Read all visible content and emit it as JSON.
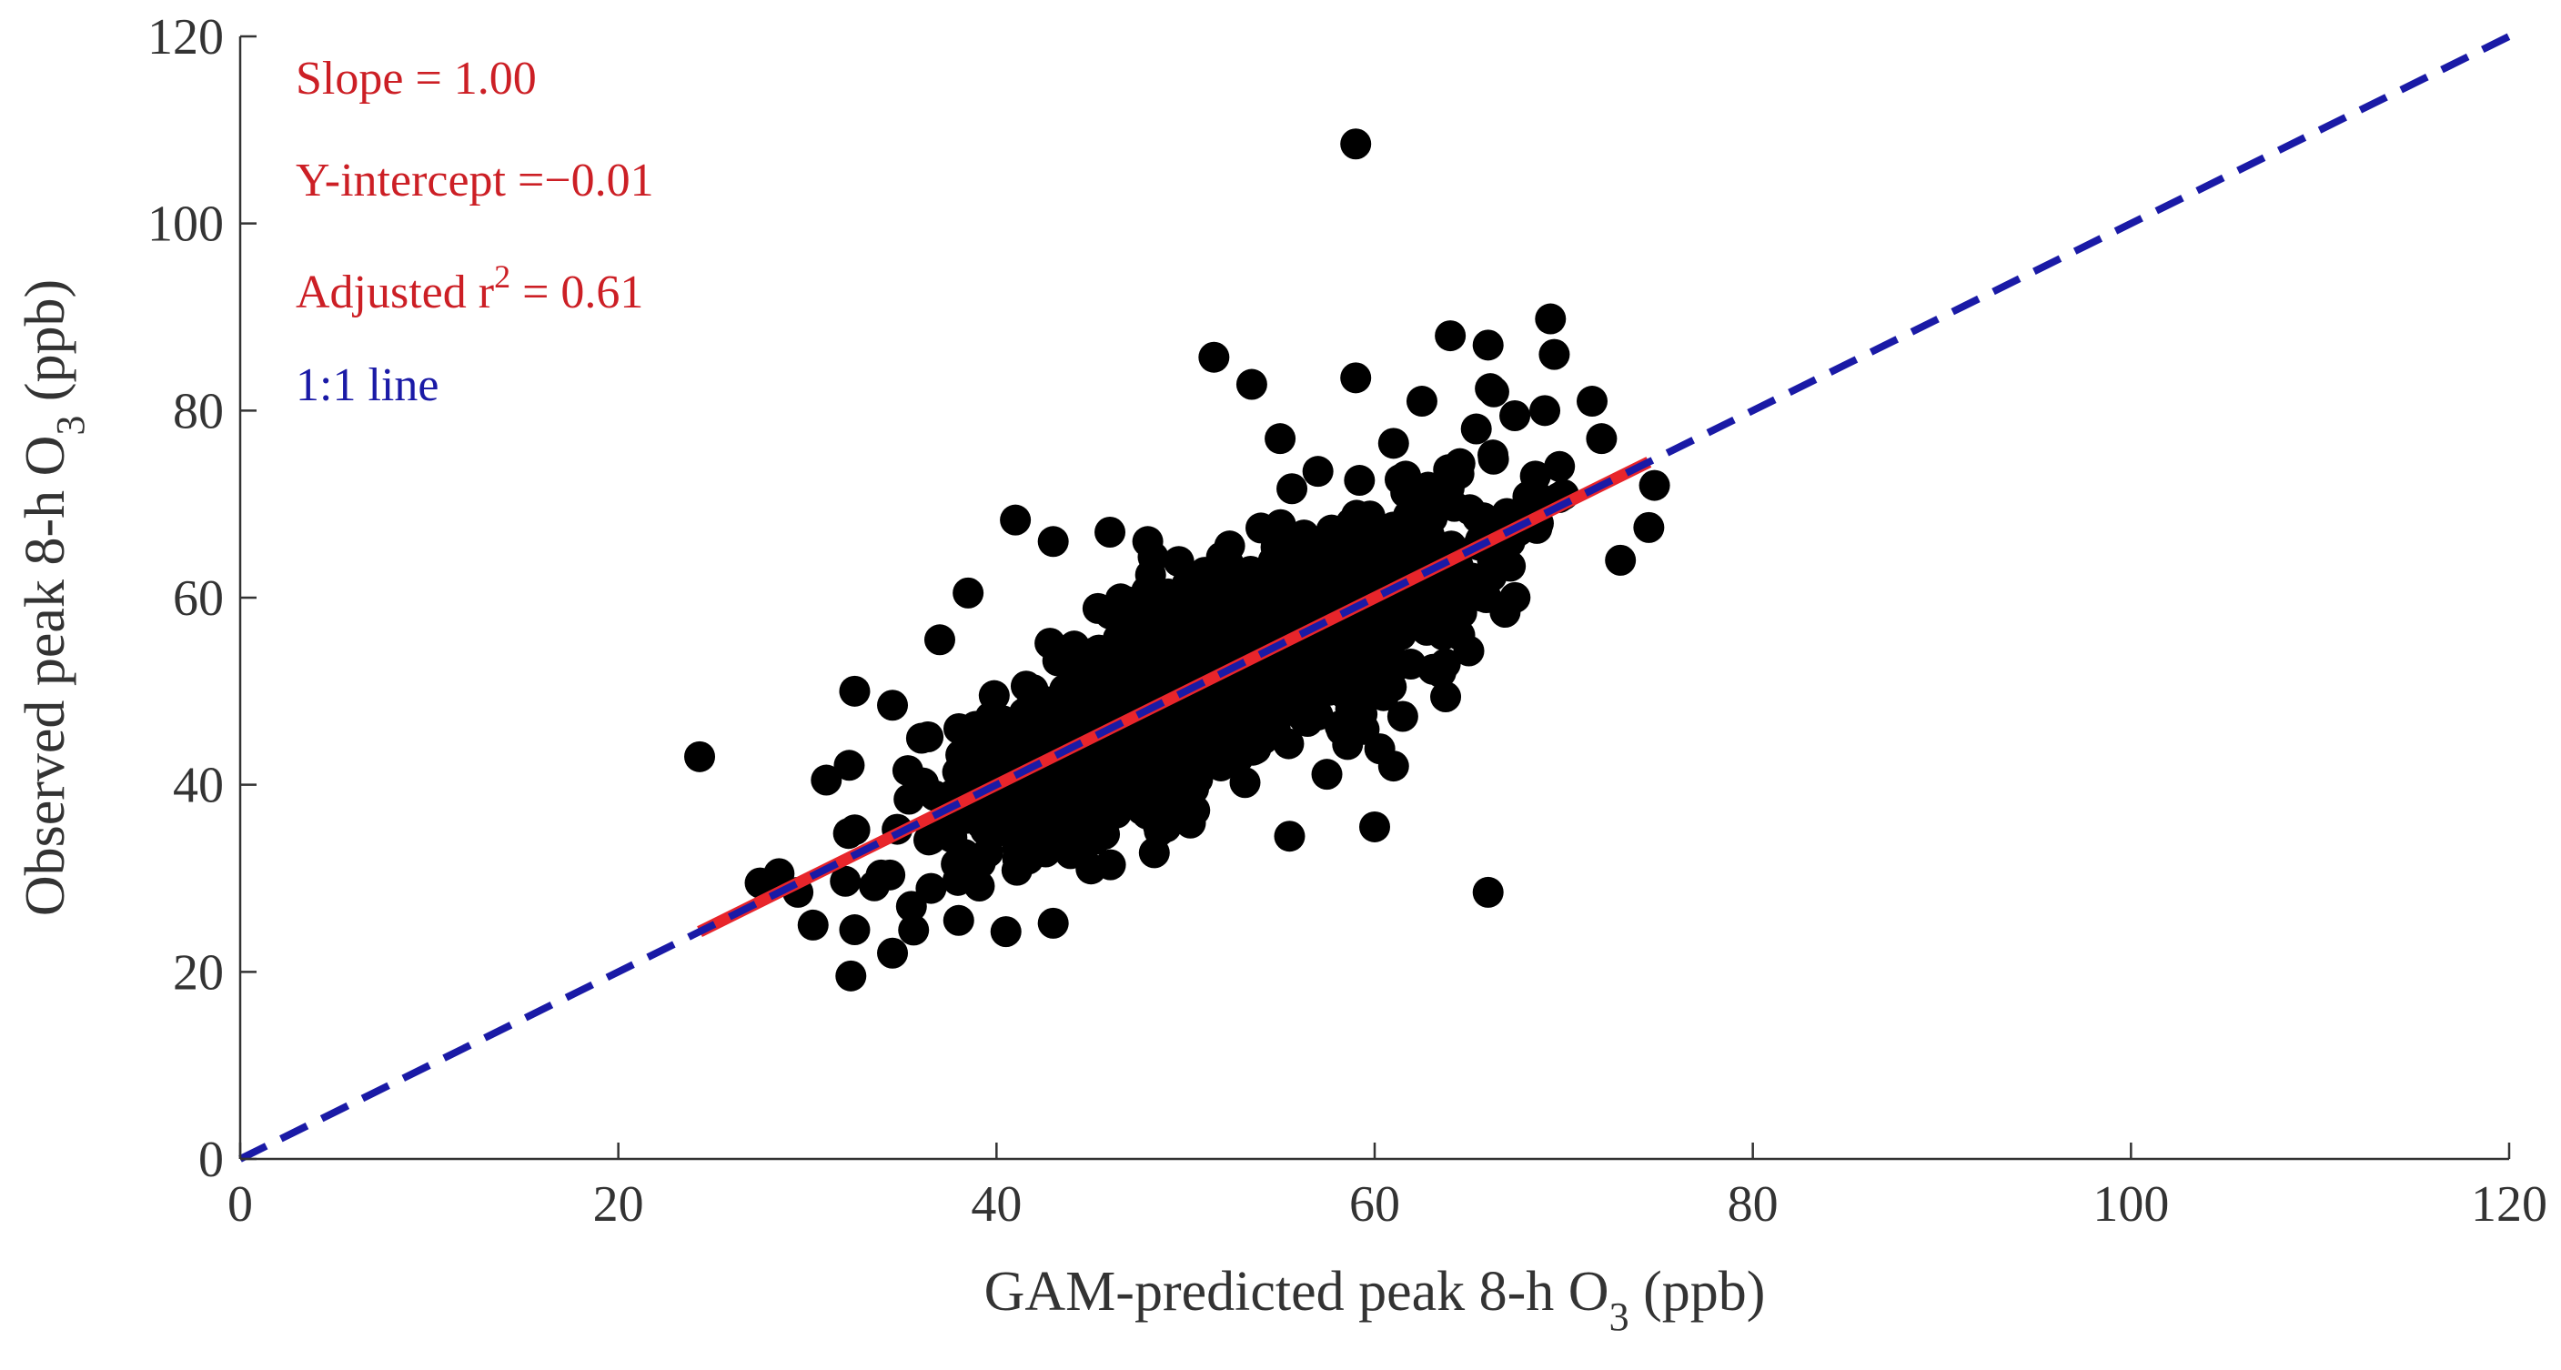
{
  "chart_data": {
    "type": "scatter",
    "xlabel_main": "GAM-predicted peak 8-h O",
    "xlabel_sub": "3",
    "xlabel_unit": " (ppb)",
    "ylabel_main": "Observed peak 8-h O",
    "ylabel_sub": "3",
    "ylabel_unit": " (ppb)",
    "xlim": [
      0,
      120
    ],
    "ylim": [
      0,
      120
    ],
    "x_ticks": [
      0,
      20,
      40,
      60,
      80,
      100,
      120
    ],
    "y_ticks": [
      0,
      20,
      40,
      60,
      80,
      100,
      120
    ],
    "grid": false,
    "annotations": {
      "slope": "Slope = 1.00",
      "intercept": "Y-intercept =−0.01",
      "r2_prefix": "Adjusted r",
      "r2_sup": "2",
      "r2_suffix": " = 0.61",
      "oneone": "1:1 line"
    },
    "colors": {
      "points": "#000000",
      "fit_line": "#e8252b",
      "oneone_line": "#1a1aa6",
      "annotation_red": "#cc1f25",
      "annotation_blue": "#1a1aa6"
    },
    "fit_line": {
      "x": [
        24.3,
        74.5
      ],
      "y": [
        24.3,
        74.5
      ]
    },
    "oneone_line": {
      "x": [
        0,
        120
      ],
      "y": [
        0,
        120
      ]
    },
    "points": {
      "outliers": [
        [
          24.3,
          43.0
        ],
        [
          59.0,
          108.5
        ],
        [
          66.0,
          28.5
        ],
        [
          74.8,
          72.0
        ],
        [
          74.5,
          67.5
        ],
        [
          73.0,
          64.0
        ],
        [
          71.5,
          81.0
        ],
        [
          69.5,
          86.0
        ],
        [
          69.3,
          89.8
        ],
        [
          72.0,
          77.0
        ],
        [
          64.0,
          88.0
        ],
        [
          66.0,
          87.0
        ],
        [
          51.5,
          85.7
        ],
        [
          53.5,
          82.8
        ],
        [
          59.0,
          83.5
        ],
        [
          66.3,
          82.0
        ],
        [
          38.5,
          60.5
        ],
        [
          41.0,
          68.3
        ],
        [
          43.0,
          66.0
        ],
        [
          46.0,
          67.0
        ],
        [
          37.0,
          55.5
        ],
        [
          32.5,
          50.0
        ],
        [
          34.5,
          48.5
        ],
        [
          28.5,
          30.5
        ],
        [
          29.5,
          28.5
        ],
        [
          30.3,
          25.0
        ],
        [
          32.5,
          24.5
        ],
        [
          34.5,
          22.0
        ],
        [
          40.5,
          24.3
        ],
        [
          43.0,
          25.2
        ],
        [
          55.5,
          34.5
        ],
        [
          60.0,
          35.5
        ],
        [
          61.0,
          42.0
        ],
        [
          64.5,
          56.0
        ],
        [
          63.5,
          52.0
        ],
        [
          27.5,
          29.5
        ],
        [
          31.0,
          40.5
        ],
        [
          35.5,
          27.0
        ],
        [
          38.0,
          25.5
        ],
        [
          45.0,
          31.0
        ],
        [
          55.0,
          77.0
        ],
        [
          57.0,
          73.5
        ],
        [
          61.0,
          76.5
        ],
        [
          62.5,
          81.0
        ],
        [
          68.5,
          73.0
        ],
        [
          69.0,
          80.0
        ],
        [
          67.0,
          69.0
        ],
        [
          70.0,
          71.0
        ],
        [
          65.5,
          61.0
        ],
        [
          48.0,
          66.0
        ]
      ],
      "cloud": {
        "count": 1600,
        "x_center": 51.5,
        "x_sd": 6.8,
        "x_min": 30,
        "x_max": 70,
        "y_sd": 5.2,
        "seed": 7
      }
    }
  }
}
